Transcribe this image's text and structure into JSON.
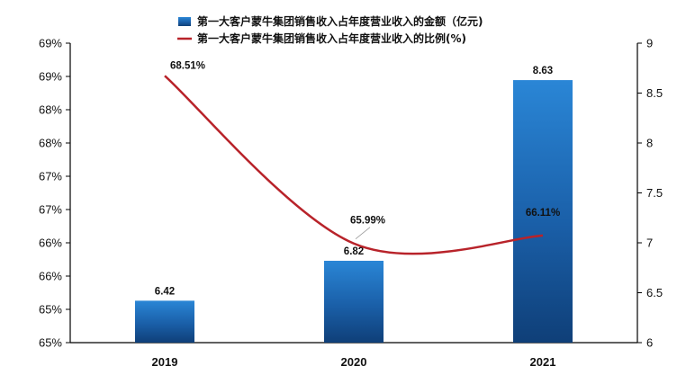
{
  "chart_data": {
    "type": "bar+line",
    "categories": [
      "2019",
      "2020",
      "2021"
    ],
    "series": [
      {
        "name": "第一大客户蒙牛集团销售收入占年度营业收入的金额（亿元)",
        "type": "bar",
        "axis": "right",
        "values": [
          6.42,
          6.82,
          8.63
        ],
        "labels": [
          "6.42",
          "6.82",
          "8.63"
        ],
        "color": "#1f6fb8"
      },
      {
        "name": "第一大客户蒙牛集团销售收入占年度营业收入的比例(%)",
        "type": "line",
        "axis": "left",
        "values": [
          68.51,
          65.99,
          66.11
        ],
        "labels": [
          "68.51%",
          "65.99%",
          "66.11%"
        ],
        "color": "#b8232a"
      }
    ],
    "y_left": {
      "ylim": [
        64.5,
        69.0
      ],
      "ticks": [
        64.5,
        65.0,
        65.5,
        66.0,
        66.5,
        67.0,
        67.5,
        68.0,
        68.5,
        69.0
      ],
      "tick_labels": [
        "65%",
        "65%",
        "66%",
        "66%",
        "67%",
        "67%",
        "68%",
        "68%",
        "69%",
        "69%"
      ]
    },
    "y_right": {
      "ylim": [
        6,
        9
      ],
      "ticks": [
        6,
        6.5,
        7,
        7.5,
        8,
        8.5,
        9
      ],
      "tick_labels": [
        "6",
        "6.5",
        "7",
        "7.5",
        "8",
        "8.5",
        "9"
      ]
    },
    "legend_position": "top-center",
    "grid": false
  }
}
